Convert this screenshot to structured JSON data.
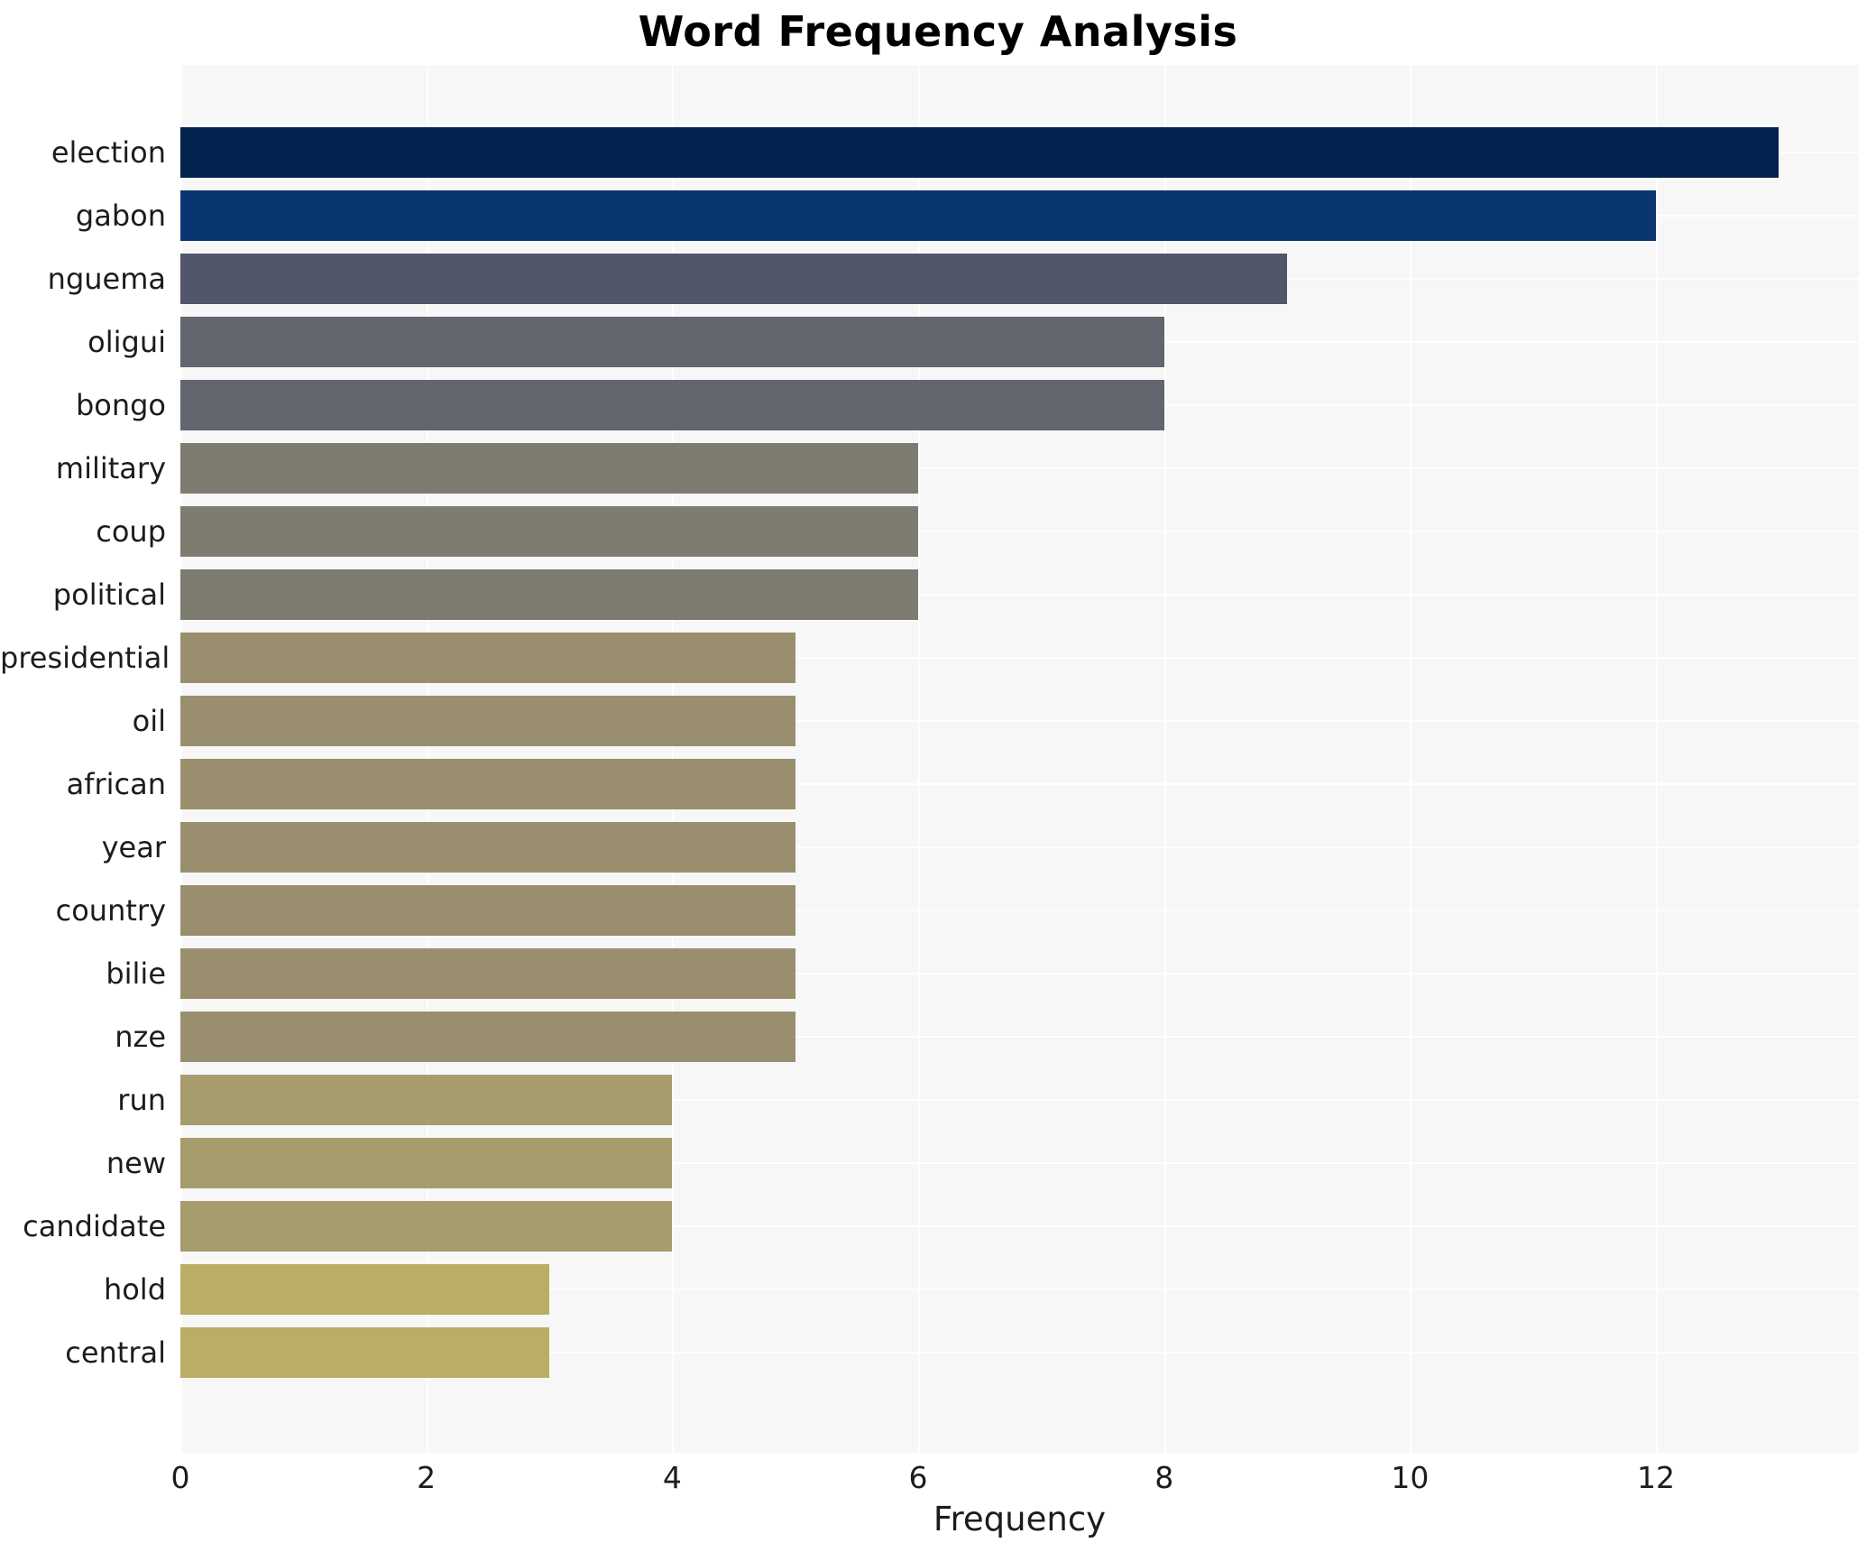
{
  "chart_data": {
    "type": "bar",
    "orientation": "horizontal",
    "title": "Word Frequency Analysis",
    "xlabel": "Frequency",
    "ylabel": "",
    "categories": [
      "election",
      "gabon",
      "nguema",
      "oligui",
      "bongo",
      "military",
      "coup",
      "political",
      "presidential",
      "oil",
      "african",
      "year",
      "country",
      "bilie",
      "nze",
      "run",
      "new",
      "candidate",
      "hold",
      "central"
    ],
    "values": [
      13,
      12,
      9,
      8,
      8,
      6,
      6,
      6,
      5,
      5,
      5,
      5,
      5,
      5,
      5,
      4,
      4,
      4,
      3,
      3
    ],
    "bar_colors": [
      "#01234e",
      "#093670",
      "#51566b",
      "#63656f",
      "#63656f",
      "#7e7c71",
      "#7e7c71",
      "#7e7c71",
      "#998f6e",
      "#998f6e",
      "#998f6e",
      "#998f6e",
      "#998f6e",
      "#998f6e",
      "#998f6e",
      "#a79c6b",
      "#a79c6b",
      "#a79c6b",
      "#bcad64",
      "#bcad64"
    ],
    "x_ticks": [
      0,
      2,
      4,
      6,
      8,
      10,
      12
    ],
    "xlim": [
      0,
      13.65
    ],
    "grid": true,
    "legend": "none",
    "plot_bg": "#f7f7f7",
    "grid_color": "#ffffff",
    "figure_bg": "#ffffff"
  }
}
